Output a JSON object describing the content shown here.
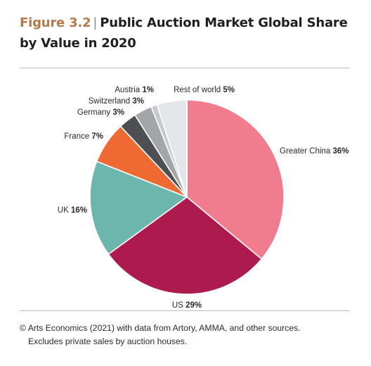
{
  "figure": {
    "label": "Figure 3.2",
    "separator": "|",
    "title": "Public Auction Market Global Share by Value in 2020"
  },
  "chart_data": {
    "type": "pie",
    "title": "Public Auction Market Global Share by Value in 2020",
    "unit": "%",
    "slices": [
      {
        "name": "Greater China",
        "value": 36,
        "display": "36%",
        "color": "#f07c8e"
      },
      {
        "name": "US",
        "value": 29,
        "display": "29%",
        "color": "#ad1a4e"
      },
      {
        "name": "UK",
        "value": 16,
        "display": "16%",
        "color": "#6db6ae"
      },
      {
        "name": "France",
        "value": 7,
        "display": "7%",
        "color": "#ef6a32"
      },
      {
        "name": "Germany",
        "value": 3,
        "display": "3%",
        "color": "#4e4f53"
      },
      {
        "name": "Switzerland",
        "value": 3,
        "display": "3%",
        "color": "#a4a5aa"
      },
      {
        "name": "Austria",
        "value": 1,
        "display": "1%",
        "color": "#c7c8cc"
      },
      {
        "name": "Rest of world",
        "value": 5,
        "display": "5%",
        "color": "#e5e6ea"
      }
    ],
    "start": "12 o'clock",
    "direction": "clockwise",
    "labels_outside": true
  },
  "source": {
    "line1": "© Arts Economics (2021) with data from Artory, AMMA, and other sources.",
    "line2": "Excludes private sales by auction houses."
  }
}
